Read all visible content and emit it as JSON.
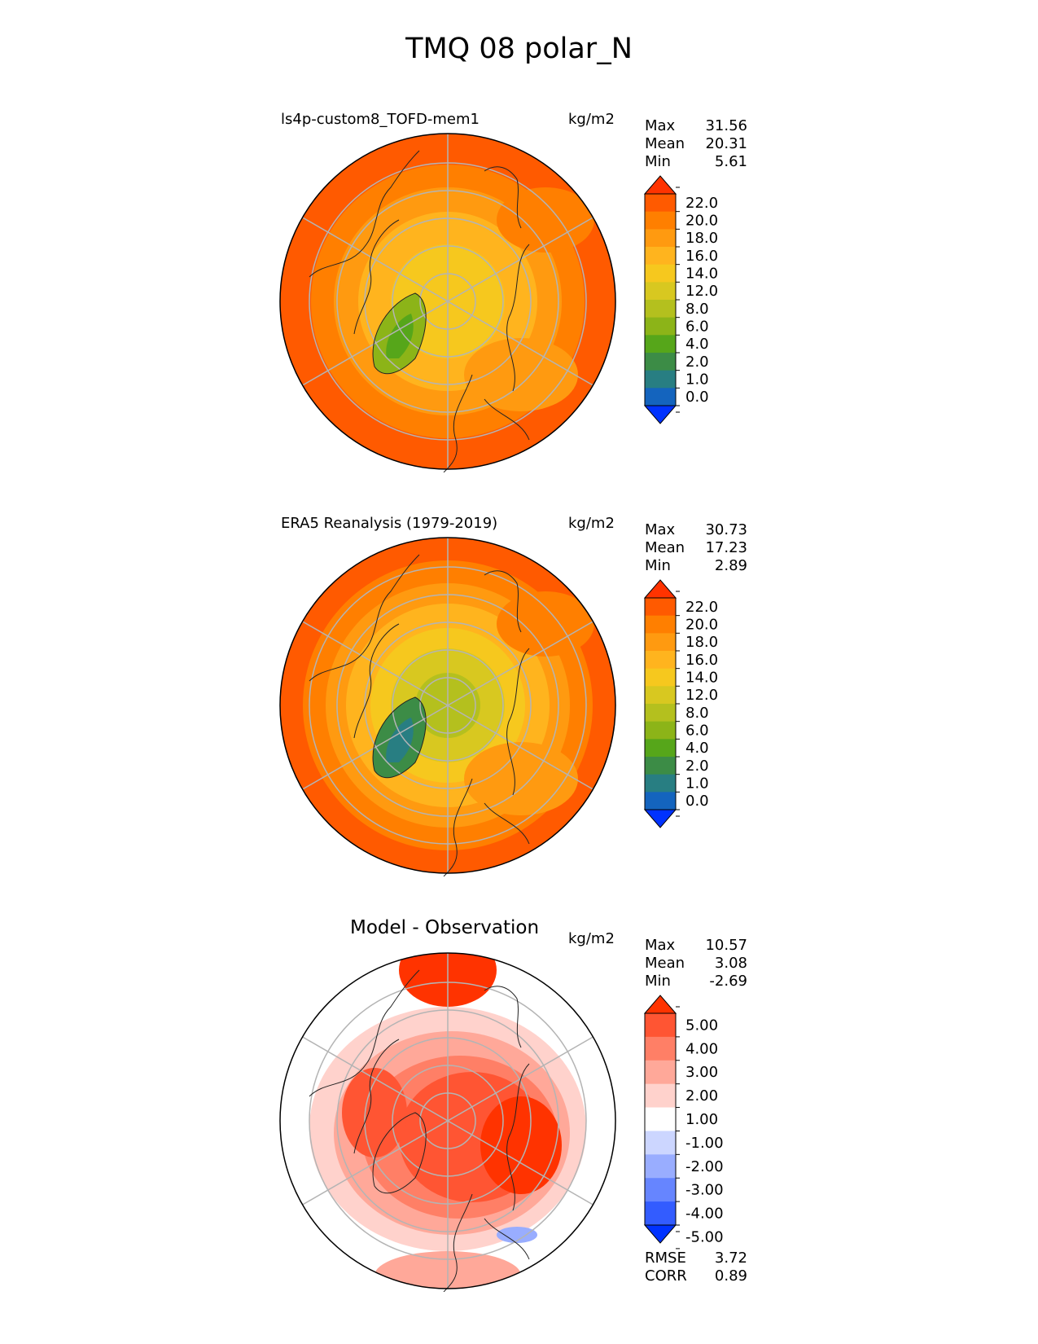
{
  "figure_title": "TMQ 08 polar_N",
  "chart_data": [
    {
      "type": "polar-contour-map",
      "projection": "north-polar-stereographic",
      "title": "ls4p-custom8_TOFD-mem1",
      "units": "kg/m2",
      "stats": {
        "max": "31.56",
        "mean": "20.31",
        "min": "5.61"
      },
      "colorbar": {
        "levels": [
          "22.0",
          "20.0",
          "18.0",
          "16.0",
          "14.0",
          "12.0",
          "8.0",
          "6.0",
          "4.0",
          "2.0",
          "1.0",
          "0.0"
        ],
        "colors": [
          "#ff3300",
          "#ff5a00",
          "#ff7f00",
          "#ff9a10",
          "#ffb41e",
          "#f6c81e",
          "#d8c820",
          "#b4c01e",
          "#8cb418",
          "#56a61a",
          "#3c8c46",
          "#287e82",
          "#1464be",
          "#0032ff"
        ]
      }
    },
    {
      "type": "polar-contour-map",
      "projection": "north-polar-stereographic",
      "title": "ERA5 Reanalysis (1979-2019)",
      "units": "kg/m2",
      "stats": {
        "max": "30.73",
        "mean": "17.23",
        "min": "2.89"
      },
      "colorbar": {
        "levels": [
          "22.0",
          "20.0",
          "18.0",
          "16.0",
          "14.0",
          "12.0",
          "8.0",
          "6.0",
          "4.0",
          "2.0",
          "1.0",
          "0.0"
        ],
        "colors": [
          "#ff3300",
          "#ff5a00",
          "#ff7f00",
          "#ff9a10",
          "#ffb41e",
          "#f6c81e",
          "#d8c820",
          "#b4c01e",
          "#8cb418",
          "#56a61a",
          "#3c8c46",
          "#287e82",
          "#1464be",
          "#0032ff"
        ]
      }
    },
    {
      "type": "polar-contour-map",
      "projection": "north-polar-stereographic",
      "title": "Model - Observation",
      "units": "kg/m2",
      "stats": {
        "max": "10.57",
        "mean": "3.08",
        "min": "-2.69"
      },
      "rmse": {
        "label": "RMSE",
        "value": "3.72"
      },
      "corr": {
        "label": "CORR",
        "value": "0.89"
      },
      "colorbar": {
        "levels": [
          "5.00",
          "4.00",
          "3.00",
          "2.00",
          "1.00",
          "-1.00",
          "-2.00",
          "-3.00",
          "-4.00",
          "-5.00"
        ],
        "colors": [
          "#ff3300",
          "#ff5533",
          "#ff7f66",
          "#ffa899",
          "#ffd2cc",
          "#ffffff",
          "#ccd6ff",
          "#99adff",
          "#6685ff",
          "#335cff",
          "#0032ff"
        ]
      }
    }
  ],
  "labels": {
    "max": "Max",
    "mean": "Mean",
    "min": "Min"
  }
}
